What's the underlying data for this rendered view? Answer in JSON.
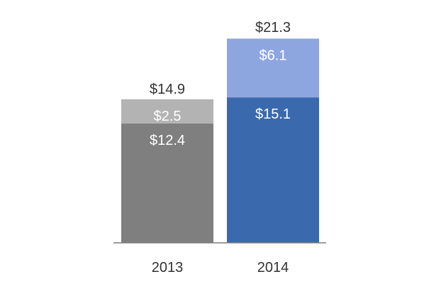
{
  "chart_data": {
    "type": "bar",
    "stacked": true,
    "title": "",
    "xlabel": "",
    "ylabel": "",
    "ylim": [
      0,
      21.3
    ],
    "grid": false,
    "legend": "none",
    "categories": [
      "2013",
      "2014"
    ],
    "totals": [
      14.9,
      21.3
    ],
    "total_labels": [
      "$14.9",
      "$21.3"
    ],
    "series": [
      {
        "values": [
          12.4,
          15.1
        ],
        "labels": [
          "$12.4",
          "$15.1"
        ],
        "colors": [
          "#7f7f7f",
          "#3a6aad"
        ]
      },
      {
        "values": [
          2.5,
          6.1
        ],
        "labels": [
          "$2.5",
          "$6.1"
        ],
        "colors": [
          "#b3b3b3",
          "#8ea6e0"
        ]
      }
    ],
    "axis_color": "#7f7f7f",
    "label_color_dark": "#333333",
    "label_color_light": "#ffffff"
  }
}
